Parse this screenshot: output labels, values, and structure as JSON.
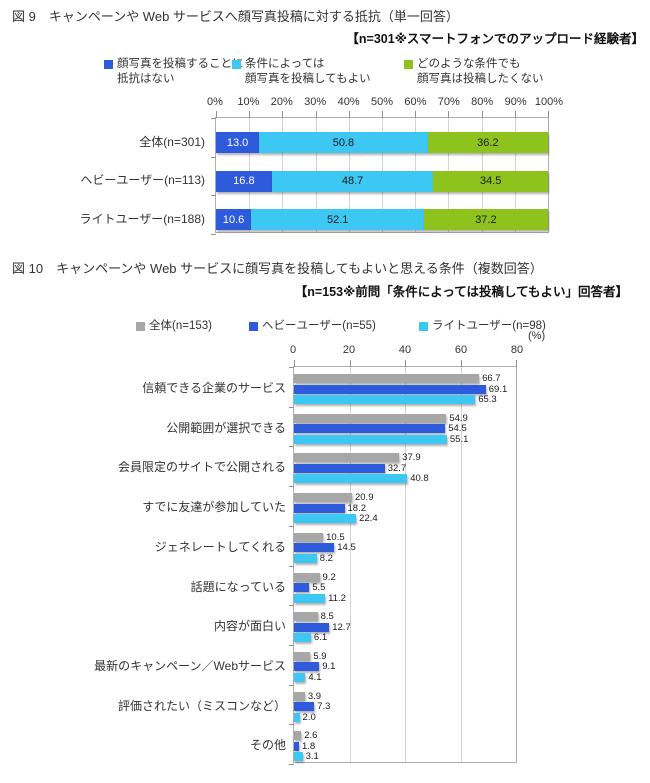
{
  "colors": {
    "blue": "#2D5BDC",
    "cyan": "#3CC8F2",
    "green": "#8EC31E",
    "gray": "#A7A7A7",
    "grid": "#D4D4D4",
    "frame": "#B0B0B0",
    "text": "#333333"
  },
  "fig9": {
    "title": "図 9　キャンペーンや Web サービスへ顔写真投稿に対する抵抗（単一回答）",
    "note": "【n=301※スマートフォンでのアップロード経験者】",
    "legend": [
      {
        "label": "顔写真を投稿することに\n抵抗はない",
        "colorKey": "blue"
      },
      {
        "label": "条件によっては\n顔写真を投稿してもよい",
        "colorKey": "cyan"
      },
      {
        "label": "どのような条件でも\n顔写真は投稿したくない",
        "colorKey": "green"
      }
    ]
  },
  "fig10": {
    "title": "図 10　キャンペーンや Web サービスに顔写真を投稿してもよいと思える条件（複数回答）",
    "note": "【n=153※前問「条件によっては投稿してもよい」回答者】",
    "unit": "(%)",
    "legend": [
      {
        "label": "全体(n=153)",
        "colorKey": "gray"
      },
      {
        "label": "ヘビーユーザー(n=55)",
        "colorKey": "blue"
      },
      {
        "label": "ライトユーザー(n=98)",
        "colorKey": "cyan"
      }
    ]
  },
  "chart_data": [
    {
      "type": "bar",
      "variant": "horizontal-stacked",
      "title": "図9 キャンペーンやWebサービスへ顔写真投稿に対する抵抗（単一回答）",
      "note": "【n=301※スマートフォンでのアップロード経験者】",
      "categories": [
        "全体(n=301)",
        "ヘビーユーザー(n=113)",
        "ライトユーザー(n=188)"
      ],
      "series": [
        {
          "name": "顔写真を投稿することに抵抗はない",
          "colorKey": "blue",
          "values": [
            13.0,
            16.8,
            10.6
          ]
        },
        {
          "name": "条件によっては顔写真を投稿してもよい",
          "colorKey": "cyan",
          "values": [
            50.8,
            48.7,
            52.1
          ]
        },
        {
          "name": "どのような条件でも顔写真は投稿したくない",
          "colorKey": "green",
          "values": [
            36.2,
            34.5,
            37.2
          ]
        }
      ],
      "xlim": [
        0,
        100
      ],
      "x_ticks": [
        "0%",
        "10%",
        "20%",
        "30%",
        "40%",
        "50%",
        "60%",
        "70%",
        "80%",
        "90%",
        "100%"
      ],
      "grid": true,
      "legend_position": "top"
    },
    {
      "type": "bar",
      "variant": "horizontal-grouped",
      "title": "図10 キャンペーンやWebサービスに顔写真を投稿してもよいと思える条件（複数回答）",
      "note": "【n=153※前問「条件によっては投稿してもよい」回答者】",
      "categories": [
        "信頼できる企業のサービス",
        "公開範囲が選択できる",
        "会員限定のサイトで公開される",
        "すでに友達が参加していた",
        "ジェネレートしてくれる",
        "話題になっている",
        "内容が面白い",
        "最新のキャンペーン／Webサービス",
        "評価されたい（ミスコンなど）",
        "その他"
      ],
      "series": [
        {
          "name": "全体(n=153)",
          "colorKey": "gray",
          "values": [
            66.7,
            54.9,
            37.9,
            20.9,
            10.5,
            9.2,
            8.5,
            5.9,
            3.9,
            2.6
          ]
        },
        {
          "name": "ヘビーユーザー(n=55)",
          "colorKey": "blue",
          "values": [
            69.1,
            54.5,
            32.7,
            18.2,
            14.5,
            5.5,
            12.7,
            9.1,
            7.3,
            1.8
          ]
        },
        {
          "name": "ライトユーザー(n=98)",
          "colorKey": "cyan",
          "values": [
            65.3,
            55.1,
            40.8,
            22.4,
            8.2,
            11.2,
            6.1,
            4.1,
            2.0,
            3.1
          ]
        }
      ],
      "xlim": [
        0,
        80
      ],
      "x_ticks": [
        "0",
        "20",
        "40",
        "60",
        "80"
      ],
      "unit": "(%)",
      "grid": true,
      "legend_position": "top"
    }
  ]
}
